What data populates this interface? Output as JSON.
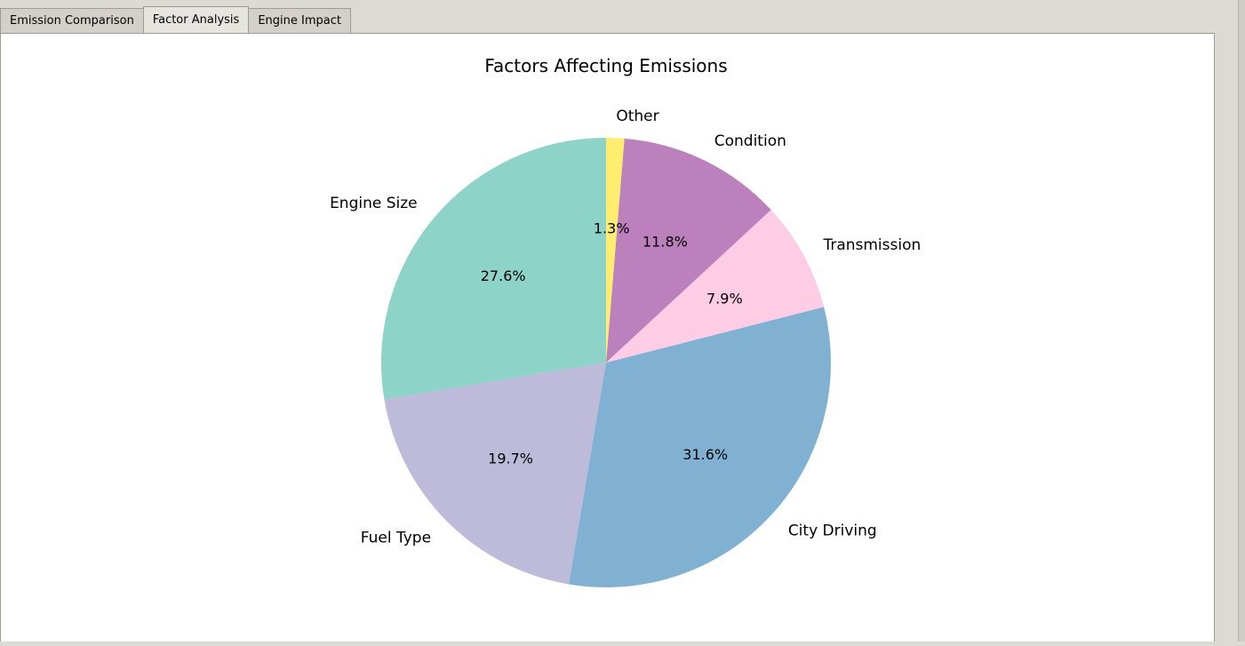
{
  "tabs": [
    {
      "label": "Emission Comparison",
      "active": false
    },
    {
      "label": "Factor Analysis",
      "active": true
    },
    {
      "label": "Engine Impact",
      "active": false
    }
  ],
  "chart_data": {
    "type": "pie",
    "title": "Factors Affecting Emissions",
    "start_angle_deg": 90,
    "direction": "counterclockwise",
    "slices": [
      {
        "label": "Engine Size",
        "value": 27.6,
        "pct_label": "27.6%",
        "color": "#8dd3c7"
      },
      {
        "label": "Fuel Type",
        "value": 19.7,
        "pct_label": "19.7%",
        "color": "#bebada"
      },
      {
        "label": "City Driving",
        "value": 31.6,
        "pct_label": "31.6%",
        "color": "#80b1d3"
      },
      {
        "label": "Transmission",
        "value": 7.9,
        "pct_label": "7.9%",
        "color": "#fccde5"
      },
      {
        "label": "Condition",
        "value": 11.8,
        "pct_label": "11.8%",
        "color": "#bc80bd"
      },
      {
        "label": "Other",
        "value": 1.3,
        "pct_label": "1.3%",
        "color": "#ffed6f"
      }
    ]
  }
}
